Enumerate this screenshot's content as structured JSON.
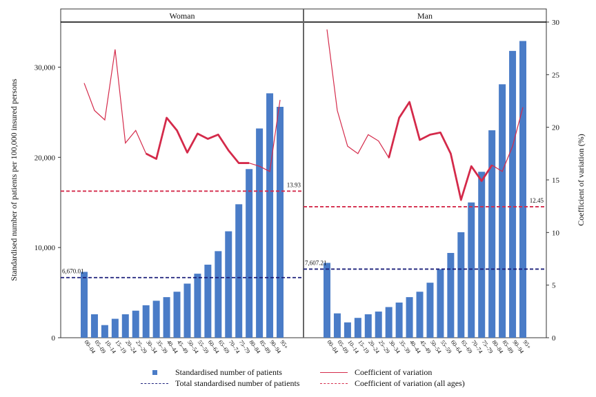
{
  "chart_data": [
    {
      "type": "bar",
      "title": "Woman",
      "ylabel_left": "Standardised number of patients per 100,000 insured persons",
      "ylabel_right": "Coefficient of variation (%)",
      "ylim_left": [
        0,
        35000
      ],
      "ylim_right": [
        0,
        30
      ],
      "left_ticks": [
        "0",
        "10,000",
        "20,000",
        "30,000"
      ],
      "right_ticks": [
        "0",
        "5",
        "10",
        "15",
        "20",
        "25",
        "30"
      ],
      "categories": [
        "00–04",
        "05–09",
        "10–14",
        "15–19",
        "20–24",
        "25–29",
        "30–34",
        "35–39",
        "40–44",
        "45–49",
        "50–54",
        "55–59",
        "60–64",
        "65–69",
        "70–74",
        "75–79",
        "80–84",
        "85–89",
        "90–94",
        "95+"
      ],
      "series": [
        {
          "name": "Standardised number of patients",
          "values": [
            7300,
            2600,
            1400,
            2100,
            2600,
            3000,
            3600,
            4100,
            4500,
            5100,
            6000,
            7100,
            8100,
            9600,
            11800,
            14800,
            18700,
            23200,
            27100,
            25600
          ]
        },
        {
          "name": "Coefficient of variation",
          "values": [
            null,
            null,
            null,
            null,
            null,
            null,
            17.5,
            17.0,
            20.9,
            19.7,
            17.6,
            19.4,
            18.9,
            19.3,
            17.8,
            16.6,
            16.6,
            null,
            null,
            null
          ]
        },
        {
          "name": "Coefficient of variation (all ages)",
          "values": [
            24.2,
            21.6,
            20.7,
            27.4,
            18.5,
            19.7,
            17.5,
            17.0,
            20.9,
            19.7,
            17.6,
            19.4,
            18.9,
            19.3,
            17.8,
            16.6,
            16.6,
            16.3,
            15.8,
            22.6
          ]
        }
      ],
      "total_patients": {
        "value": 6670.01,
        "label": "6,670.01"
      },
      "total_cv": {
        "value": 13.93,
        "label": "13.93"
      }
    },
    {
      "type": "bar",
      "title": "Man",
      "categories": [
        "00–04",
        "05–09",
        "10–14",
        "15–19",
        "20–24",
        "25–29",
        "30–34",
        "35–39",
        "40–44",
        "45–49",
        "50–54",
        "55–59",
        "60–64",
        "65–69",
        "70–74",
        "75–79",
        "80–84",
        "85–89",
        "90–94",
        "95+"
      ],
      "series": [
        {
          "name": "Standardised number of patients",
          "values": [
            8300,
            2700,
            1700,
            2200,
            2600,
            2900,
            3400,
            3900,
            4500,
            5100,
            6100,
            7600,
            9400,
            11700,
            15000,
            18400,
            23000,
            28100,
            31800,
            32900
          ]
        },
        {
          "name": "Coefficient of variation",
          "values": [
            null,
            null,
            null,
            null,
            null,
            null,
            17.1,
            20.9,
            22.4,
            18.8,
            19.3,
            19.5,
            17.5,
            13.1,
            16.3,
            14.9,
            16.4,
            null,
            null,
            null
          ]
        },
        {
          "name": "Coefficient of variation (all ages)",
          "values": [
            29.3,
            21.6,
            18.2,
            17.5,
            19.3,
            18.7,
            17.1,
            20.9,
            22.4,
            18.8,
            19.3,
            19.5,
            17.5,
            13.1,
            16.3,
            14.9,
            16.4,
            15.8,
            18.2,
            21.9
          ]
        }
      ],
      "total_patients": {
        "value": 7607.21,
        "label": "7,607.21"
      },
      "total_cv": {
        "value": 12.45,
        "label": "12.45"
      }
    }
  ],
  "legend": {
    "bar": "Standardised number of patients",
    "total": "Total standardised number of patients",
    "cv": "Coefficient of variation",
    "cv_all": "Coefficient of variation (all ages)"
  },
  "colors": {
    "bar": "#4a7cc7",
    "cv": "#d42a4a",
    "total": "#1b1f7a"
  }
}
